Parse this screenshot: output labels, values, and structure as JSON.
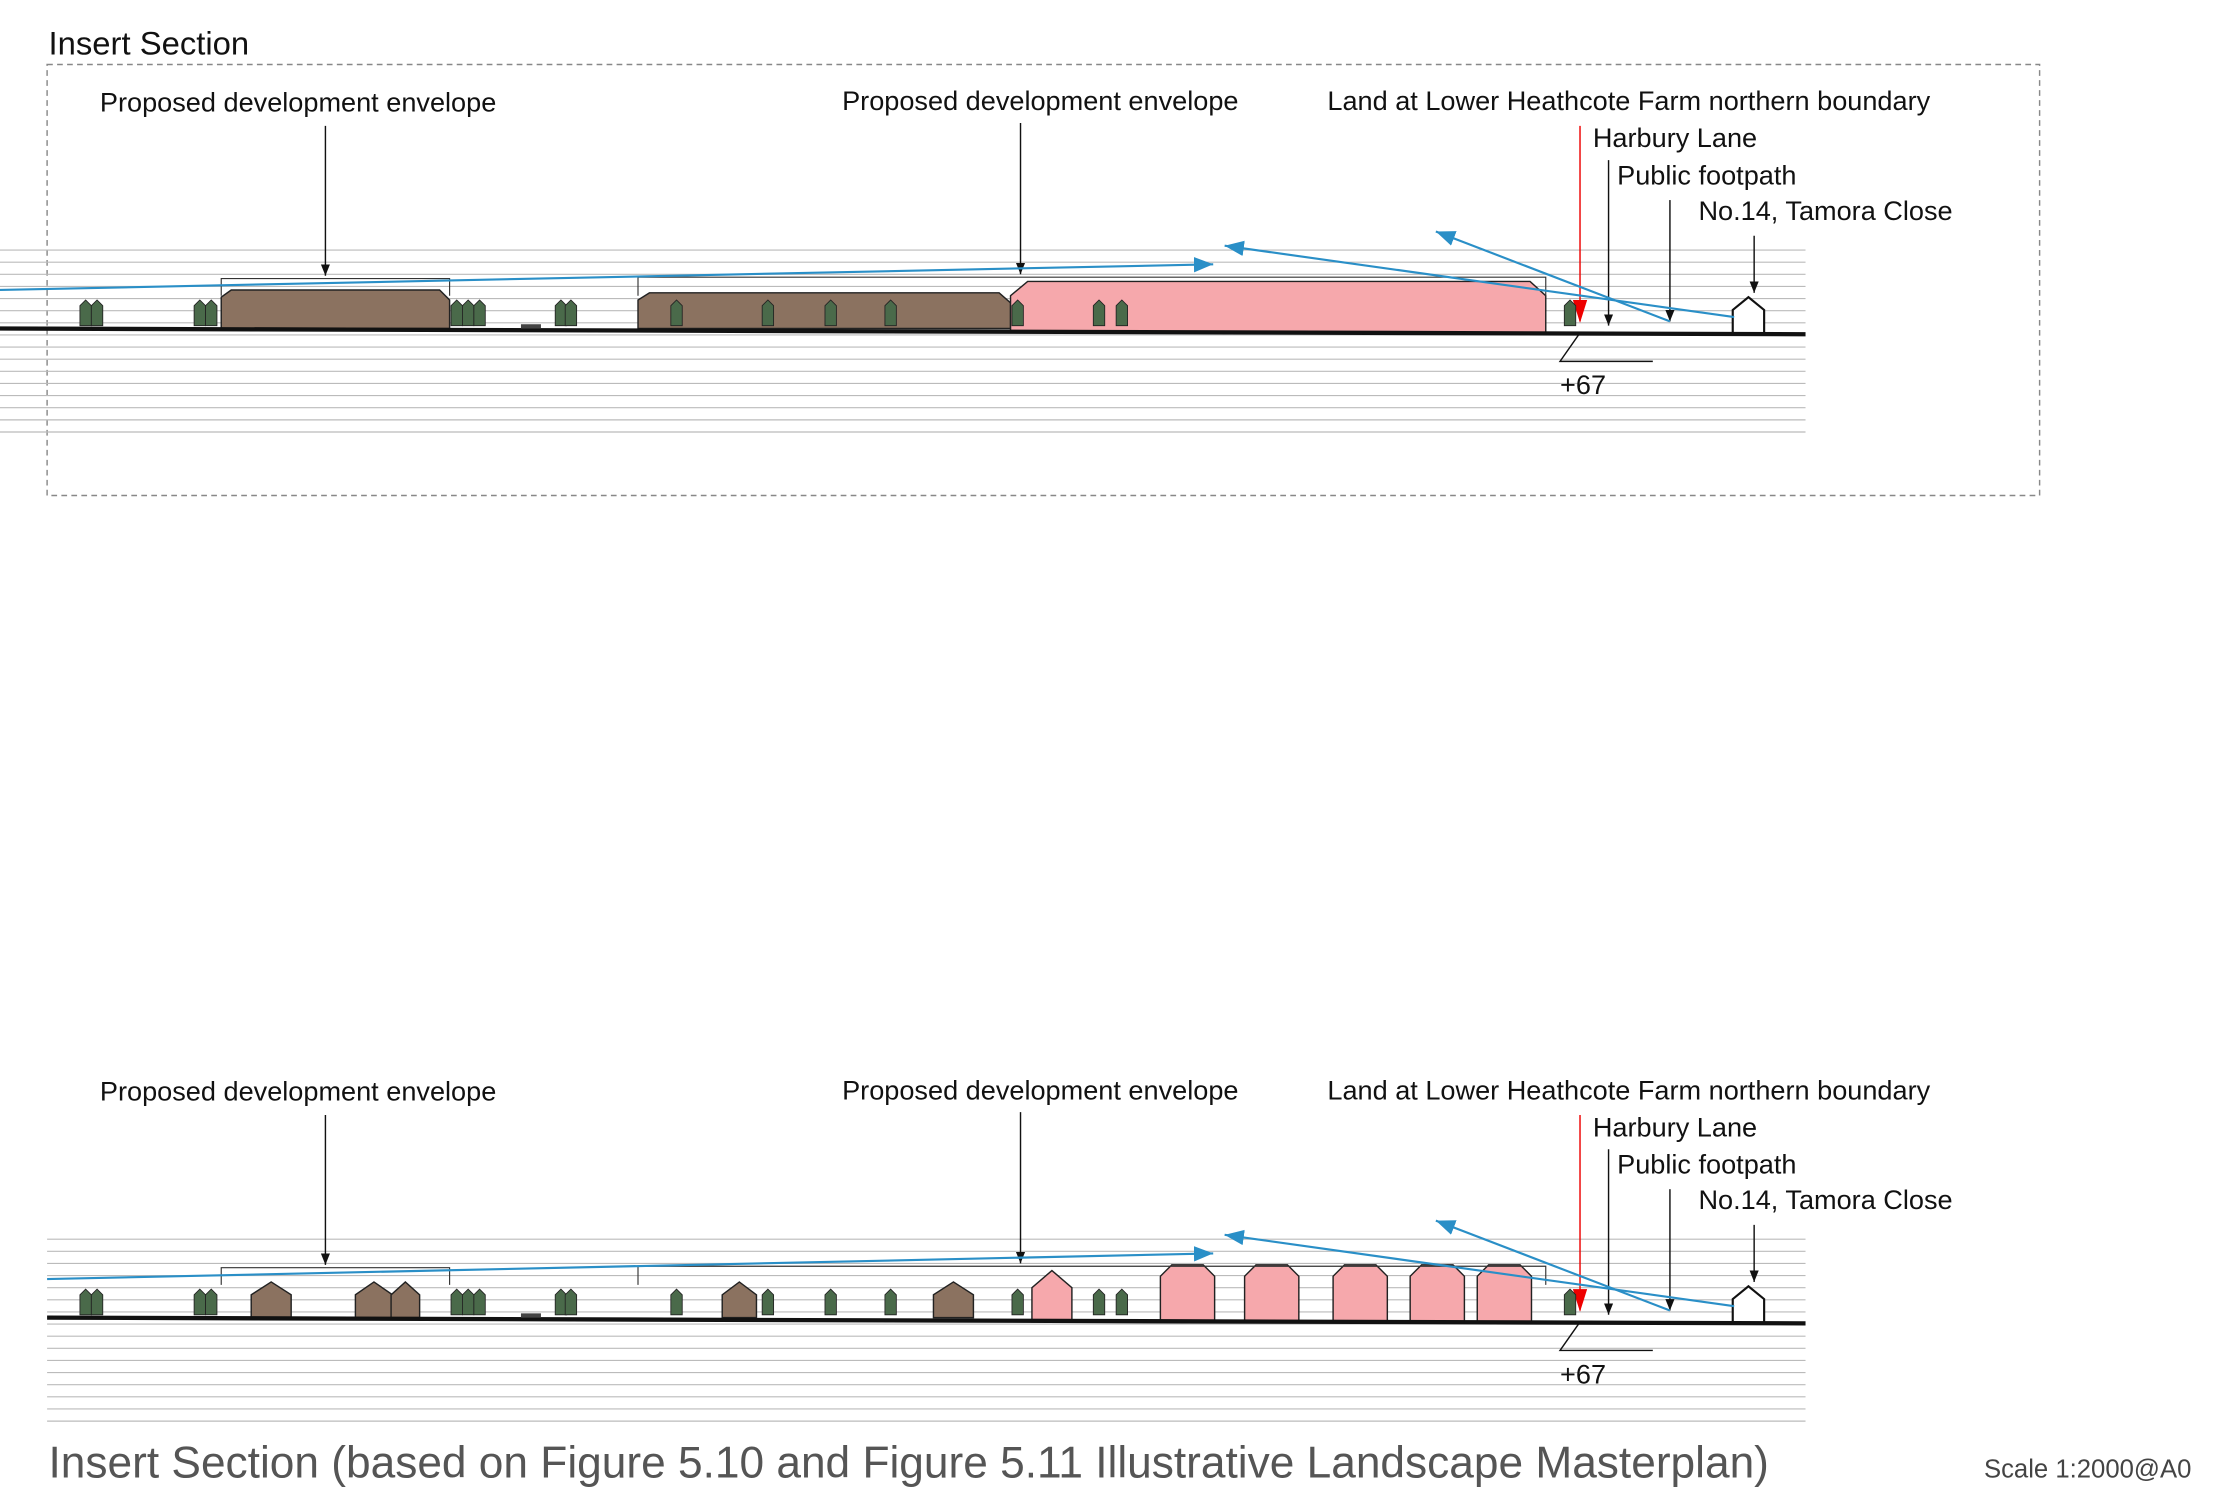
{
  "top_section": {
    "title": "Insert Section",
    "labels": [
      "Proposed development envelope",
      "Proposed development envelope",
      "Land at Lower Heathcote Farm northern boundary",
      "Harbury Lane",
      "Public footpath",
      "No.14, Tamora Close"
    ],
    "level": "+67"
  },
  "bottom_section": {
    "labels": [
      "Proposed development envelope",
      "Proposed development envelope",
      "Land at Lower Heathcote Farm northern boundary",
      "Harbury Lane",
      "Public footpath",
      "No.14, Tamora Close"
    ],
    "level": "+67"
  },
  "footer": {
    "caption": "Insert Section (based on Figure 5.10 and Figure 5.11 Illustrative Landscape Masterplan)",
    "scale": "Scale 1:2000@A0"
  }
}
